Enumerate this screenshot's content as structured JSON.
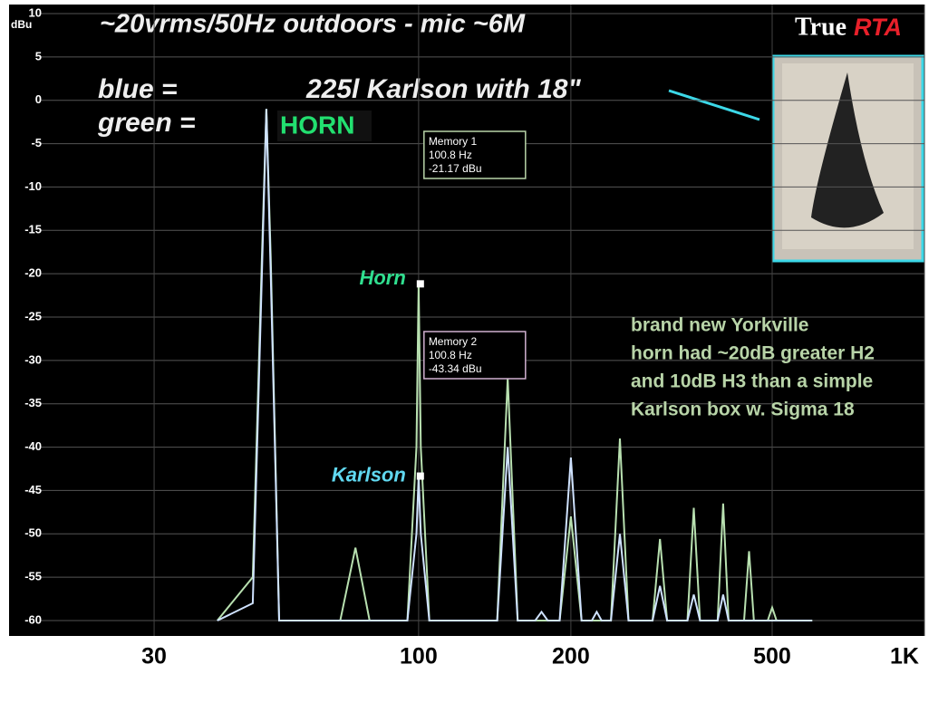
{
  "chart_data": {
    "type": "line",
    "title": "~20vrms/50Hz outdoors - mic ~6M",
    "y_label": "dBu",
    "logo": {
      "first": "True",
      "second": "RTA"
    },
    "legend_text": {
      "blue_label": "blue    =",
      "blue_desc": "225l Karlson with 18\"",
      "green_label": "green =",
      "green_desc": "HORN"
    },
    "x_scale": "log",
    "xlim": [
      15.5,
      1000
    ],
    "xticks": [
      30,
      100,
      200,
      500,
      {
        "value": 1000,
        "label": "1K"
      }
    ],
    "ylim": [
      -61,
      10
    ],
    "yticks": [
      10,
      5,
      0,
      -5,
      -10,
      -15,
      -20,
      -25,
      -30,
      -35,
      -40,
      -45,
      -50,
      -55,
      -60
    ],
    "grid": true,
    "x": [
      40,
      47,
      49,
      50,
      51,
      53,
      70,
      75,
      80,
      95,
      99,
      100,
      101,
      105,
      143,
      150,
      157,
      170,
      175,
      180,
      190,
      200,
      210,
      220,
      225,
      230,
      240,
      250,
      260,
      290,
      300,
      310,
      340,
      350,
      360,
      390,
      400,
      410,
      440,
      450,
      460,
      490,
      500,
      510,
      600
    ],
    "series": [
      {
        "name": "Horn",
        "color": "#b8e0b0",
        "values": [
          -60,
          -55,
          -18,
          -1,
          -18,
          -60,
          -60,
          -51.6,
          -60,
          -60,
          -40,
          -21.17,
          -40,
          -60,
          -60,
          -32,
          -60,
          -60,
          -60,
          -60,
          -60,
          -48,
          -60,
          -60,
          -60,
          -60,
          -60,
          -39,
          -60,
          -60,
          -50.6,
          -60,
          -60,
          -47,
          -60,
          -60,
          -46.5,
          -60,
          -60,
          -52,
          -60,
          -60,
          -58.5,
          -60,
          -60
        ]
      },
      {
        "name": "Karlson",
        "color": "#cfe2ff",
        "values": [
          -60,
          -58,
          -20,
          -1,
          -20,
          -60,
          -60,
          -60,
          -60,
          -60,
          -50,
          -43.34,
          -50,
          -60,
          -60,
          -40,
          -60,
          -60,
          -59,
          -60,
          -60,
          -41.2,
          -60,
          -60,
          -59,
          -60,
          -60,
          -50,
          -60,
          -60,
          -56,
          -60,
          -60,
          -57,
          -60,
          -60,
          -57,
          -60,
          -60,
          -60,
          -60,
          -60,
          -60,
          -60,
          -60
        ]
      }
    ],
    "markers": [
      {
        "x": 100.8,
        "y": -21.17,
        "title": "Memory 1",
        "freq": "100.8 Hz",
        "level": "-21.17 dBu"
      },
      {
        "x": 100.8,
        "y": -43.34,
        "title": "Memory 2",
        "freq": "100.8 Hz",
        "level": "-43.34 dBu"
      }
    ],
    "note": [
      "brand new Yorkville",
      "horn had ~20dB greater H2",
      "and 10dB H3 than a simple",
      "Karlson box w. Sigma 18"
    ]
  }
}
